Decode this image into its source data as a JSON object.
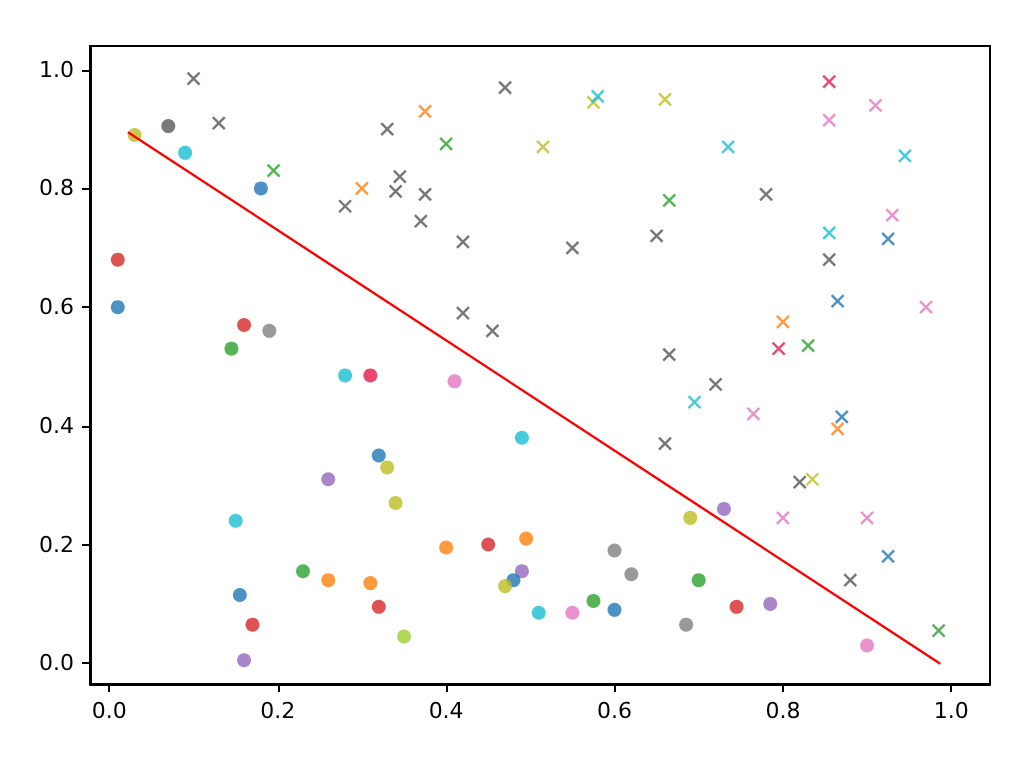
{
  "chart_data": {
    "type": "scatter",
    "xlim": [
      -0.023,
      1.046
    ],
    "ylim": [
      -0.035,
      1.04
    ],
    "xticks": [
      {
        "value": 0,
        "label": "0.0"
      },
      {
        "value": 0.2,
        "label": "0.2"
      },
      {
        "value": 0.4,
        "label": "0.4"
      },
      {
        "value": 0.6,
        "label": "0.6"
      },
      {
        "value": 0.8,
        "label": "0.8"
      },
      {
        "value": 1,
        "label": "1.0"
      }
    ],
    "yticks": [
      {
        "value": 0,
        "label": "0.0"
      },
      {
        "value": 0.2,
        "label": "0.2"
      },
      {
        "value": 0.4,
        "label": "0.4"
      },
      {
        "value": 0.6,
        "label": "0.6"
      },
      {
        "value": 0.8,
        "label": "0.8"
      },
      {
        "value": 1,
        "label": "1.0"
      }
    ],
    "series": [
      {
        "marker": "circle",
        "x": [
          0.01,
          0.01,
          0.03,
          0.07,
          0.09,
          0.18,
          0.16,
          0.19,
          0.145,
          0.28,
          0.31,
          0.41,
          0.32,
          0.33,
          0.26,
          0.34,
          0.15,
          0.49,
          0.4,
          0.45,
          0.23,
          0.26,
          0.31,
          0.155,
          0.32,
          0.17,
          0.35,
          0.16,
          0.495,
          0.49,
          0.48,
          0.47,
          0.51,
          0.55,
          0.6,
          0.575,
          0.6,
          0.62,
          0.685,
          0.7,
          0.69,
          0.73,
          0.745,
          0.785,
          0.9
        ],
        "values": [
          0.6,
          0.68,
          0.89,
          0.905,
          0.86,
          0.8,
          0.57,
          0.56,
          0.53,
          0.485,
          0.485,
          0.475,
          0.35,
          0.33,
          0.31,
          0.27,
          0.24,
          0.38,
          0.195,
          0.2,
          0.155,
          0.14,
          0.135,
          0.115,
          0.095,
          0.065,
          0.045,
          0.005,
          0.21,
          0.155,
          0.14,
          0.13,
          0.085,
          0.085,
          0.09,
          0.105,
          0.19,
          0.15,
          0.065,
          0.14,
          0.245,
          0.26,
          0.095,
          0.1,
          0.03
        ],
        "colors": [
          "#1f77b4",
          "#d62728",
          "#bcbd22",
          "#595959",
          "#17becf",
          "#1f77b4",
          "#d62728",
          "#7f7f7f",
          "#2ca02c",
          "#17becf",
          "#e6194b",
          "#e377c2",
          "#1f77b4",
          "#bcbd22",
          "#9467bd",
          "#bcbd22",
          "#17becf",
          "#17becf",
          "#ff7f0e",
          "#d62728",
          "#2ca02c",
          "#ff7f0e",
          "#ff7f0e",
          "#1f77b4",
          "#d62728",
          "#d62728",
          "#9acd32",
          "#9467bd",
          "#ff7f0e",
          "#9467bd",
          "#1f77b4",
          "#bcbd22",
          "#17becf",
          "#e377c2",
          "#1f77b4",
          "#2ca02c",
          "#7f7f7f",
          "#7f7f7f",
          "#7f7f7f",
          "#2ca02c",
          "#bcbd22",
          "#9467bd",
          "#d62728",
          "#9467bd",
          "#e377c2"
        ]
      },
      {
        "marker": "cross",
        "x": [
          0.1,
          0.13,
          0.195,
          0.33,
          0.375,
          0.4,
          0.345,
          0.3,
          0.34,
          0.375,
          0.28,
          0.37,
          0.42,
          0.47,
          0.575,
          0.58,
          0.66,
          0.515,
          0.735,
          0.855,
          0.91,
          0.855,
          0.945,
          0.665,
          0.78,
          0.65,
          0.55,
          0.93,
          0.855,
          0.925,
          0.855,
          0.865,
          0.97,
          0.42,
          0.455,
          0.8,
          0.795,
          0.83,
          0.665,
          0.72,
          0.695,
          0.765,
          0.87,
          0.865,
          0.66,
          0.82,
          0.835,
          0.8,
          0.9,
          0.925,
          0.88,
          0.985
        ],
        "values": [
          0.985,
          0.91,
          0.83,
          0.9,
          0.93,
          0.875,
          0.82,
          0.8,
          0.795,
          0.79,
          0.77,
          0.745,
          0.71,
          0.97,
          0.945,
          0.955,
          0.95,
          0.87,
          0.87,
          0.98,
          0.94,
          0.915,
          0.855,
          0.78,
          0.79,
          0.72,
          0.7,
          0.755,
          0.725,
          0.715,
          0.68,
          0.61,
          0.6,
          0.59,
          0.56,
          0.575,
          0.53,
          0.535,
          0.52,
          0.47,
          0.44,
          0.42,
          0.415,
          0.395,
          0.37,
          0.305,
          0.31,
          0.245,
          0.245,
          0.18,
          0.14,
          0.055
        ],
        "colors": [
          "#555555",
          "#555555",
          "#2ca02c",
          "#555555",
          "#ff7f0e",
          "#2ca02c",
          "#555555",
          "#ff7f0e",
          "#555555",
          "#555555",
          "#555555",
          "#555555",
          "#555555",
          "#555555",
          "#bcbd22",
          "#17becf",
          "#bcbd22",
          "#bcbd22",
          "#17becf",
          "#e6194b",
          "#e377c2",
          "#e377c2",
          "#17becf",
          "#2ca02c",
          "#555555",
          "#555555",
          "#555555",
          "#e377c2",
          "#17becf",
          "#1f77b4",
          "#555555",
          "#1f77b4",
          "#e377c2",
          "#555555",
          "#555555",
          "#ff7f0e",
          "#e6194b",
          "#2ca02c",
          "#555555",
          "#555555",
          "#17becf",
          "#e377c2",
          "#1f77b4",
          "#ff7f0e",
          "#555555",
          "#555555",
          "#bcbd22",
          "#e377c2",
          "#e377c2",
          "#1f77b4",
          "#555555",
          "#2ca02c"
        ]
      },
      {
        "type": "line",
        "marker": "none",
        "color": "#ff0000",
        "x": [
          0.023,
          0.986
        ],
        "values": [
          0.894,
          0
        ]
      }
    ]
  }
}
